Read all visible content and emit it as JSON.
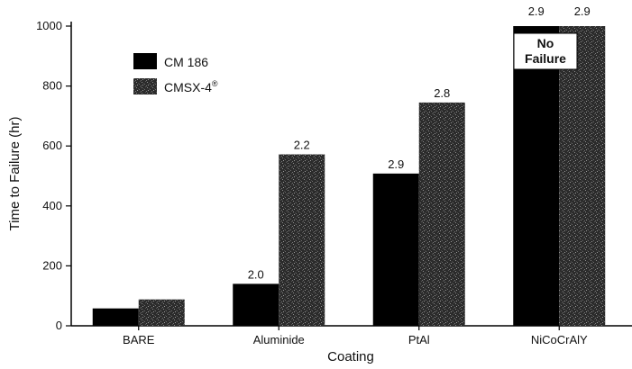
{
  "chart_data": {
    "type": "bar",
    "title": "",
    "xlabel": "Coating",
    "ylabel": "Time to Failure (hr)",
    "ylim": [
      0,
      1000
    ],
    "yticks": [
      0,
      200,
      400,
      600,
      800,
      1000
    ],
    "grid": false,
    "legend_position": "top-left",
    "categories": [
      "BARE",
      "Aluminide",
      "PtAl",
      "NiCoCrAlY"
    ],
    "series": [
      {
        "name": "CM 186",
        "color": "#000000",
        "pattern": "solid",
        "values": [
          58,
          140,
          508,
          1000
        ],
        "labels": [
          "",
          "2.0",
          "2.9",
          "2.9"
        ]
      },
      {
        "name": "CMSX-4",
        "name_sup": "®",
        "color": "#2a2a2a",
        "pattern": "speckle-dark",
        "values": [
          88,
          572,
          745,
          1000
        ],
        "labels": [
          "",
          "2.2",
          "2.8",
          "2.9"
        ]
      }
    ],
    "annotations": [
      {
        "text_line1": "No",
        "text_line2": "Failure",
        "category": "NiCoCrAlY"
      }
    ]
  }
}
